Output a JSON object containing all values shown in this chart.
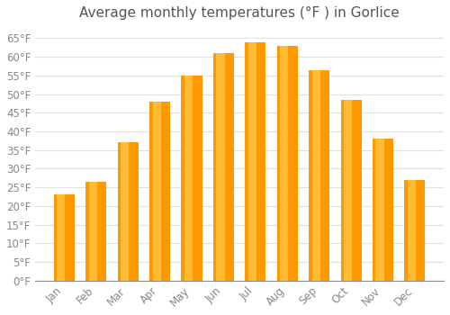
{
  "title": "Average monthly temperatures (°F ) in Gorlice",
  "months": [
    "Jan",
    "Feb",
    "Mar",
    "Apr",
    "May",
    "Jun",
    "Jul",
    "Aug",
    "Sep",
    "Oct",
    "Nov",
    "Dec"
  ],
  "values": [
    23,
    26.5,
    37,
    48,
    55,
    61,
    64,
    63,
    56.5,
    48.5,
    38,
    27
  ],
  "bar_color_left": "#FFBB33",
  "bar_color_right": "#FF9900",
  "background_color": "#ffffff",
  "ylim": [
    0,
    68
  ],
  "yticks": [
    0,
    5,
    10,
    15,
    20,
    25,
    30,
    35,
    40,
    45,
    50,
    55,
    60,
    65
  ],
  "grid_color": "#e0e0e0",
  "title_fontsize": 11,
  "tick_fontsize": 8.5,
  "tick_color": "#888888",
  "title_color": "#555555"
}
